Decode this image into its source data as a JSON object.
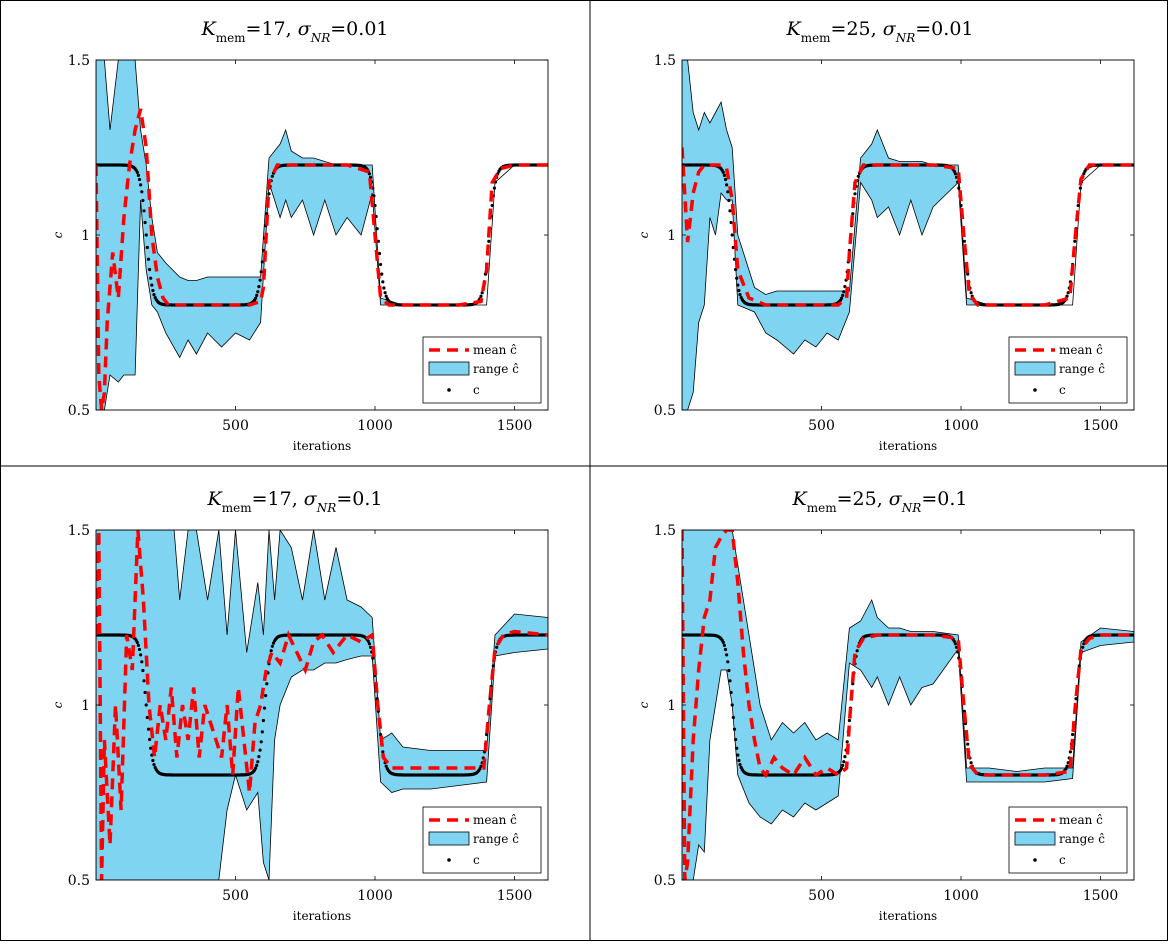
{
  "chart_data": [
    {
      "type": "line",
      "title": "K_mem = 17, σ_NR = 0.01",
      "title_parts": {
        "var": "K",
        "var_sub": "mem",
        "var_value": "17",
        "sigma": "σ",
        "sigma_sub": "NR",
        "sigma_value": "0.01"
      },
      "xlabel": "iterations",
      "ylabel": "c",
      "xlim": [
        0,
        1620
      ],
      "ylim": [
        0.5,
        1.5
      ],
      "xticks": [
        500,
        1000,
        1500
      ],
      "yticks": [
        0.5,
        1,
        1.5
      ],
      "legend_position": "bottom-right",
      "series": [
        {
          "name": "mean ĉ",
          "style": "dashed",
          "color": "#ff0000",
          "x": [
            0,
            10,
            20,
            30,
            40,
            60,
            80,
            100,
            120,
            140,
            160,
            180,
            200,
            220,
            240,
            260,
            300,
            350,
            400,
            450,
            500,
            550,
            590,
            600,
            620,
            650,
            700,
            800,
            900,
            980,
            1000,
            1020,
            1050,
            1100,
            1200,
            1300,
            1380,
            1400,
            1420,
            1450,
            1500,
            1550,
            1620
          ],
          "y": [
            1.2,
            0.6,
            0.5,
            0.55,
            0.75,
            0.95,
            0.82,
            1.05,
            1.2,
            1.3,
            1.36,
            1.25,
            1.0,
            0.88,
            0.82,
            0.8,
            0.8,
            0.8,
            0.8,
            0.8,
            0.8,
            0.8,
            0.81,
            0.85,
            1.15,
            1.2,
            1.2,
            1.2,
            1.2,
            1.18,
            1.0,
            0.82,
            0.8,
            0.8,
            0.8,
            0.8,
            0.81,
            0.9,
            1.15,
            1.19,
            1.2,
            1.2,
            1.2
          ]
        },
        {
          "name": "range ĉ",
          "style": "band",
          "color": "#7fd4f2",
          "x": [
            0,
            30,
            50,
            80,
            100,
            120,
            140,
            160,
            180,
            200,
            220,
            250,
            300,
            330,
            360,
            400,
            450,
            500,
            550,
            590,
            620,
            660,
            680,
            700,
            740,
            780,
            820,
            860,
            900,
            950,
            990,
            1020,
            1100,
            1200,
            1300,
            1400,
            1430,
            1500,
            1620
          ],
          "upper": [
            1.5,
            1.5,
            1.3,
            1.5,
            1.5,
            1.5,
            1.5,
            1.3,
            1.2,
            1.05,
            0.95,
            0.92,
            0.88,
            0.87,
            0.87,
            0.88,
            0.88,
            0.88,
            0.88,
            0.88,
            1.22,
            1.26,
            1.3,
            1.24,
            1.22,
            1.22,
            1.21,
            1.2,
            1.2,
            1.2,
            1.2,
            0.82,
            0.8,
            0.8,
            0.8,
            0.8,
            1.15,
            1.2,
            1.2
          ],
          "lower": [
            0.5,
            0.5,
            0.6,
            0.58,
            0.6,
            0.6,
            0.6,
            1.1,
            0.9,
            0.8,
            0.78,
            0.72,
            0.65,
            0.7,
            0.66,
            0.72,
            0.68,
            0.72,
            0.7,
            0.75,
            1.15,
            1.05,
            1.1,
            1.05,
            1.1,
            1.0,
            1.1,
            1.0,
            1.05,
            1.0,
            1.12,
            0.8,
            0.8,
            0.8,
            0.8,
            0.8,
            1.15,
            1.2,
            1.2
          ]
        },
        {
          "name": "c",
          "style": "dots",
          "color": "#000000",
          "profile": "square-wave",
          "high": 1.2,
          "low": 0.8,
          "transitions": [
            180,
            605,
            1010,
            1410
          ]
        }
      ]
    },
    {
      "type": "line",
      "title": "K_mem = 25, σ_NR = 0.01",
      "title_parts": {
        "var": "K",
        "var_sub": "mem",
        "var_value": "25",
        "sigma": "σ",
        "sigma_sub": "NR",
        "sigma_value": "0.01"
      },
      "xlabel": "iterations",
      "ylabel": "c",
      "xlim": [
        0,
        1620
      ],
      "ylim": [
        0.5,
        1.5
      ],
      "xticks": [
        500,
        1000,
        1500
      ],
      "yticks": [
        0.5,
        1,
        1.5
      ],
      "legend_position": "bottom-right",
      "series": [
        {
          "name": "mean ĉ",
          "style": "dashed",
          "color": "#ff0000",
          "x": [
            0,
            20,
            40,
            60,
            80,
            100,
            120,
            140,
            160,
            180,
            200,
            240,
            300,
            400,
            500,
            560,
            590,
            600,
            620,
            650,
            700,
            800,
            900,
            990,
            1010,
            1030,
            1060,
            1100,
            1200,
            1300,
            1390,
            1410,
            1430,
            1460,
            1500,
            1620
          ],
          "y": [
            1.25,
            0.98,
            1.12,
            1.18,
            1.2,
            1.2,
            1.2,
            1.2,
            1.19,
            1.1,
            0.9,
            0.82,
            0.8,
            0.8,
            0.8,
            0.8,
            0.82,
            0.95,
            1.15,
            1.2,
            1.2,
            1.2,
            1.2,
            1.19,
            1.0,
            0.83,
            0.8,
            0.8,
            0.8,
            0.8,
            0.82,
            1.0,
            1.16,
            1.2,
            1.2,
            1.2
          ]
        },
        {
          "name": "range ĉ",
          "style": "band",
          "color": "#7fd4f2",
          "x": [
            0,
            20,
            40,
            60,
            80,
            100,
            120,
            140,
            160,
            180,
            200,
            260,
            300,
            340,
            400,
            440,
            480,
            520,
            560,
            600,
            640,
            680,
            700,
            740,
            780,
            820,
            860,
            900,
            990,
            1020,
            1100,
            1200,
            1300,
            1400,
            1430,
            1500,
            1620
          ],
          "upper": [
            1.5,
            1.5,
            1.35,
            1.3,
            1.35,
            1.32,
            1.35,
            1.38,
            1.3,
            1.25,
            1.0,
            0.85,
            0.83,
            0.84,
            0.84,
            0.84,
            0.84,
            0.84,
            0.84,
            0.84,
            1.22,
            1.26,
            1.3,
            1.22,
            1.21,
            1.21,
            1.21,
            1.2,
            1.2,
            0.82,
            0.8,
            0.8,
            0.8,
            0.8,
            1.15,
            1.2,
            1.2
          ],
          "lower": [
            0.5,
            0.5,
            0.55,
            0.75,
            0.8,
            1.05,
            1.0,
            1.12,
            1.1,
            1.1,
            0.8,
            0.78,
            0.72,
            0.7,
            0.66,
            0.7,
            0.68,
            0.72,
            0.7,
            0.78,
            1.15,
            1.1,
            1.05,
            1.08,
            1.0,
            1.1,
            1.0,
            1.08,
            1.15,
            0.8,
            0.8,
            0.8,
            0.8,
            0.8,
            1.15,
            1.2,
            1.2
          ]
        },
        {
          "name": "c",
          "style": "dots",
          "color": "#000000",
          "profile": "square-wave",
          "high": 1.2,
          "low": 0.8,
          "transitions": [
            180,
            605,
            1010,
            1410
          ]
        }
      ]
    },
    {
      "type": "line",
      "title": "K_mem = 17, σ_NR = 0.1",
      "title_parts": {
        "var": "K",
        "var_sub": "mem",
        "var_value": "17",
        "sigma": "σ",
        "sigma_sub": "NR",
        "sigma_value": "0.1"
      },
      "xlabel": "iterations",
      "ylabel": "c",
      "xlim": [
        0,
        1620
      ],
      "ylim": [
        0.5,
        1.5
      ],
      "xticks": [
        500,
        1000,
        1500
      ],
      "yticks": [
        0.5,
        1,
        1.5
      ],
      "legend_position": "bottom-right",
      "series": [
        {
          "name": "mean ĉ",
          "style": "dashed",
          "color": "#ff0000",
          "x": [
            0,
            10,
            20,
            30,
            50,
            70,
            90,
            110,
            130,
            150,
            170,
            190,
            210,
            230,
            250,
            270,
            290,
            310,
            330,
            350,
            370,
            390,
            410,
            430,
            450,
            470,
            490,
            510,
            530,
            550,
            570,
            590,
            610,
            630,
            660,
            690,
            720,
            750,
            780,
            810,
            850,
            900,
            950,
            990,
            1010,
            1030,
            1060,
            1100,
            1200,
            1300,
            1390,
            1410,
            1430,
            1460,
            1500,
            1620
          ],
          "y": [
            1.2,
            1.5,
            0.5,
            0.9,
            0.6,
            1.0,
            0.7,
            1.2,
            1.1,
            1.5,
            1.3,
            1.0,
            0.85,
            1.0,
            0.9,
            1.05,
            0.85,
            1.0,
            0.9,
            1.05,
            0.85,
            1.0,
            0.95,
            0.9,
            0.85,
            1.0,
            0.8,
            1.05,
            0.9,
            0.75,
            0.95,
            1.0,
            1.1,
            1.15,
            1.12,
            1.2,
            1.15,
            1.1,
            1.18,
            1.2,
            1.15,
            1.2,
            1.18,
            1.2,
            1.0,
            0.85,
            0.82,
            0.82,
            0.82,
            0.82,
            0.82,
            1.0,
            1.16,
            1.2,
            1.21,
            1.2
          ]
        },
        {
          "name": "range ĉ",
          "style": "band",
          "color": "#7fd4f2",
          "x": [
            0,
            20,
            40,
            60,
            80,
            100,
            120,
            140,
            160,
            180,
            200,
            220,
            250,
            280,
            300,
            330,
            360,
            400,
            440,
            470,
            500,
            540,
            580,
            600,
            620,
            640,
            660,
            700,
            740,
            780,
            820,
            860,
            900,
            950,
            990,
            1020,
            1060,
            1100,
            1200,
            1300,
            1400,
            1430,
            1500,
            1620
          ],
          "upper": [
            1.5,
            1.5,
            1.5,
            1.5,
            1.5,
            1.5,
            1.5,
            1.5,
            1.5,
            1.5,
            1.5,
            1.5,
            1.5,
            1.5,
            1.3,
            1.5,
            1.5,
            1.3,
            1.5,
            1.2,
            1.5,
            1.15,
            1.35,
            1.2,
            1.5,
            1.3,
            1.5,
            1.45,
            1.3,
            1.5,
            1.3,
            1.45,
            1.3,
            1.28,
            1.25,
            0.9,
            0.92,
            0.88,
            0.87,
            0.87,
            0.87,
            1.2,
            1.26,
            1.25
          ],
          "lower": [
            0.5,
            0.5,
            0.5,
            0.5,
            0.5,
            0.5,
            0.5,
            0.5,
            0.5,
            0.5,
            0.5,
            0.5,
            0.5,
            0.5,
            0.5,
            0.5,
            0.5,
            0.5,
            0.5,
            0.7,
            0.8,
            0.7,
            0.75,
            0.55,
            0.5,
            0.9,
            1.0,
            1.08,
            1.1,
            1.1,
            1.12,
            1.12,
            1.13,
            1.14,
            1.14,
            0.78,
            0.75,
            0.76,
            0.76,
            0.77,
            0.78,
            1.14,
            1.15,
            1.16
          ]
        },
        {
          "name": "c",
          "style": "dots",
          "color": "#000000",
          "profile": "square-wave",
          "high": 1.2,
          "low": 0.8,
          "transitions": [
            180,
            605,
            1010,
            1410
          ]
        }
      ]
    },
    {
      "type": "line",
      "title": "K_mem = 25, σ_NR = 0.1",
      "title_parts": {
        "var": "K",
        "var_sub": "mem",
        "var_value": "25",
        "sigma": "σ",
        "sigma_sub": "NR",
        "sigma_value": "0.1"
      },
      "xlabel": "iterations",
      "ylabel": "c",
      "xlim": [
        0,
        1620
      ],
      "ylim": [
        0.5,
        1.5
      ],
      "xticks": [
        500,
        1000,
        1500
      ],
      "yticks": [
        0.5,
        1,
        1.5
      ],
      "legend_position": "bottom-right",
      "series": [
        {
          "name": "mean ĉ",
          "style": "dashed",
          "color": "#ff0000",
          "x": [
            0,
            10,
            20,
            40,
            60,
            80,
            100,
            120,
            140,
            160,
            180,
            200,
            220,
            240,
            260,
            280,
            300,
            330,
            360,
            400,
            440,
            480,
            520,
            560,
            590,
            600,
            620,
            650,
            700,
            800,
            900,
            990,
            1010,
            1030,
            1060,
            1100,
            1200,
            1300,
            1390,
            1410,
            1430,
            1460,
            1500,
            1620
          ],
          "y": [
            1.5,
            0.5,
            0.55,
            0.9,
            1.1,
            1.25,
            1.3,
            1.45,
            1.48,
            1.5,
            1.5,
            1.35,
            1.15,
            1.0,
            0.9,
            0.82,
            0.8,
            0.85,
            0.82,
            0.8,
            0.85,
            0.8,
            0.82,
            0.8,
            0.82,
            0.95,
            1.15,
            1.19,
            1.2,
            1.2,
            1.2,
            1.19,
            1.0,
            0.83,
            0.8,
            0.8,
            0.8,
            0.8,
            0.81,
            1.0,
            1.16,
            1.19,
            1.2,
            1.2
          ]
        },
        {
          "name": "range ĉ",
          "style": "band",
          "color": "#7fd4f2",
          "x": [
            0,
            20,
            40,
            60,
            80,
            100,
            120,
            140,
            160,
            180,
            200,
            240,
            280,
            320,
            360,
            400,
            440,
            480,
            520,
            560,
            600,
            640,
            680,
            700,
            740,
            780,
            820,
            860,
            900,
            990,
            1020,
            1100,
            1200,
            1300,
            1400,
            1430,
            1500,
            1620
          ],
          "upper": [
            1.5,
            1.5,
            1.5,
            1.5,
            1.5,
            1.5,
            1.5,
            1.5,
            1.5,
            1.5,
            1.4,
            1.2,
            1.0,
            0.9,
            0.95,
            0.92,
            0.95,
            0.9,
            0.92,
            0.9,
            1.22,
            1.24,
            1.3,
            1.25,
            1.22,
            1.22,
            1.21,
            1.21,
            1.21,
            1.2,
            0.82,
            0.82,
            0.81,
            0.82,
            0.82,
            1.18,
            1.22,
            1.21
          ],
          "lower": [
            0.5,
            0.5,
            0.5,
            0.6,
            0.58,
            0.9,
            1.0,
            1.1,
            1.1,
            1.0,
            0.8,
            0.72,
            0.68,
            0.66,
            0.7,
            0.68,
            0.72,
            0.7,
            0.72,
            0.74,
            1.12,
            1.1,
            1.05,
            1.08,
            1.0,
            1.08,
            1.0,
            1.05,
            1.06,
            1.16,
            0.78,
            0.78,
            0.78,
            0.78,
            0.79,
            1.15,
            1.17,
            1.18
          ]
        },
        {
          "name": "c",
          "style": "dots",
          "color": "#000000",
          "profile": "square-wave",
          "high": 1.2,
          "low": 0.8,
          "transitions": [
            180,
            605,
            1010,
            1410
          ]
        }
      ]
    }
  ],
  "legend": {
    "mean_label": "mean ĉ",
    "range_label": "range ĉ",
    "c_label": "c"
  },
  "colors": {
    "mean": "#ff0000",
    "band": "#7fd4f2",
    "truth": "#000000",
    "grid_border": "#000000"
  }
}
